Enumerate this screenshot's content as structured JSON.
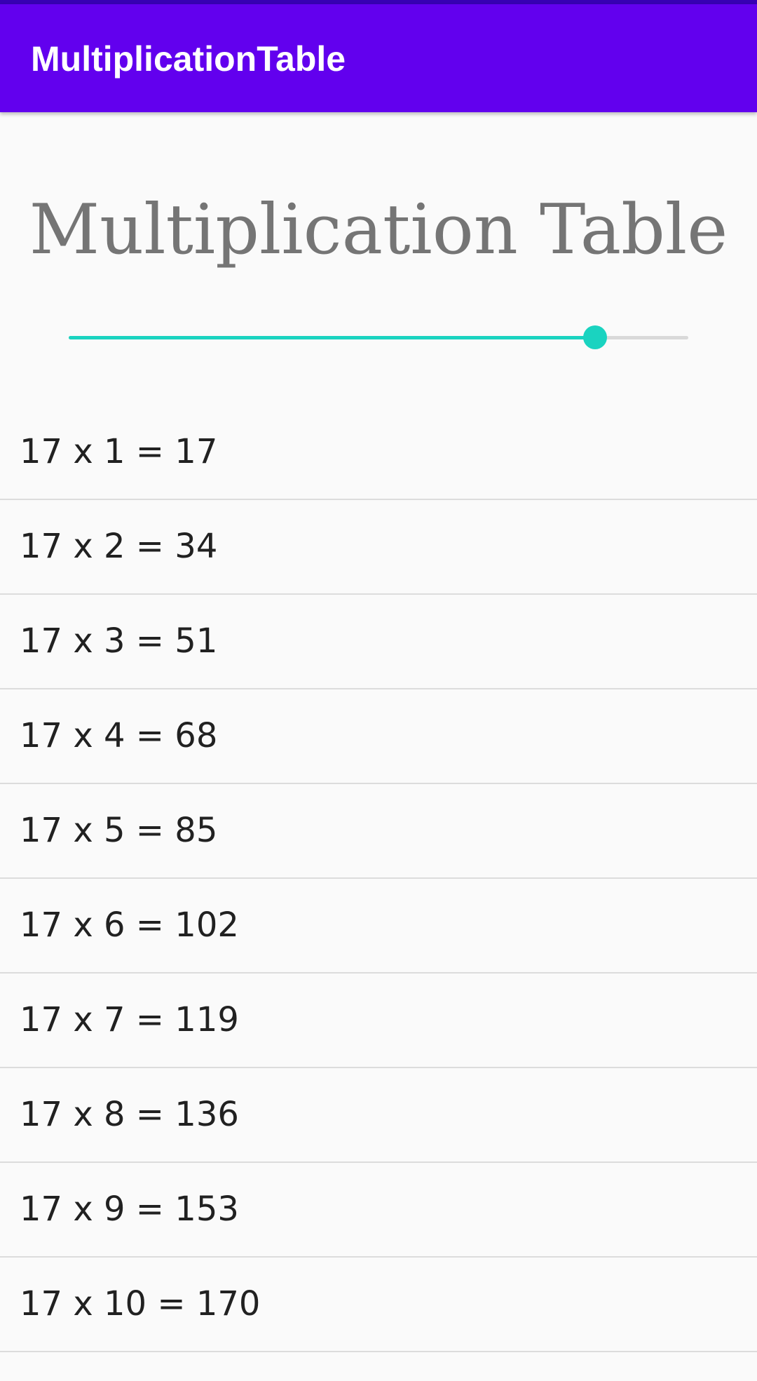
{
  "app_bar": {
    "title": "MultiplicationTable",
    "color": "#6200ee",
    "status_color": "#3700b3"
  },
  "heading": "Multiplication Table",
  "slider": {
    "value_fraction": 0.85,
    "accent_color": "#1ad3c0"
  },
  "rows": [
    "17 x 1 = 17",
    "17 x 2 = 34",
    "17 x 3 = 51",
    "17 x 4 = 68",
    "17 x 5 = 85",
    "17 x 6 = 102",
    "17 x 7 = 119",
    "17 x 8 = 136",
    "17 x 9 = 153",
    "17 x 10 = 170"
  ]
}
